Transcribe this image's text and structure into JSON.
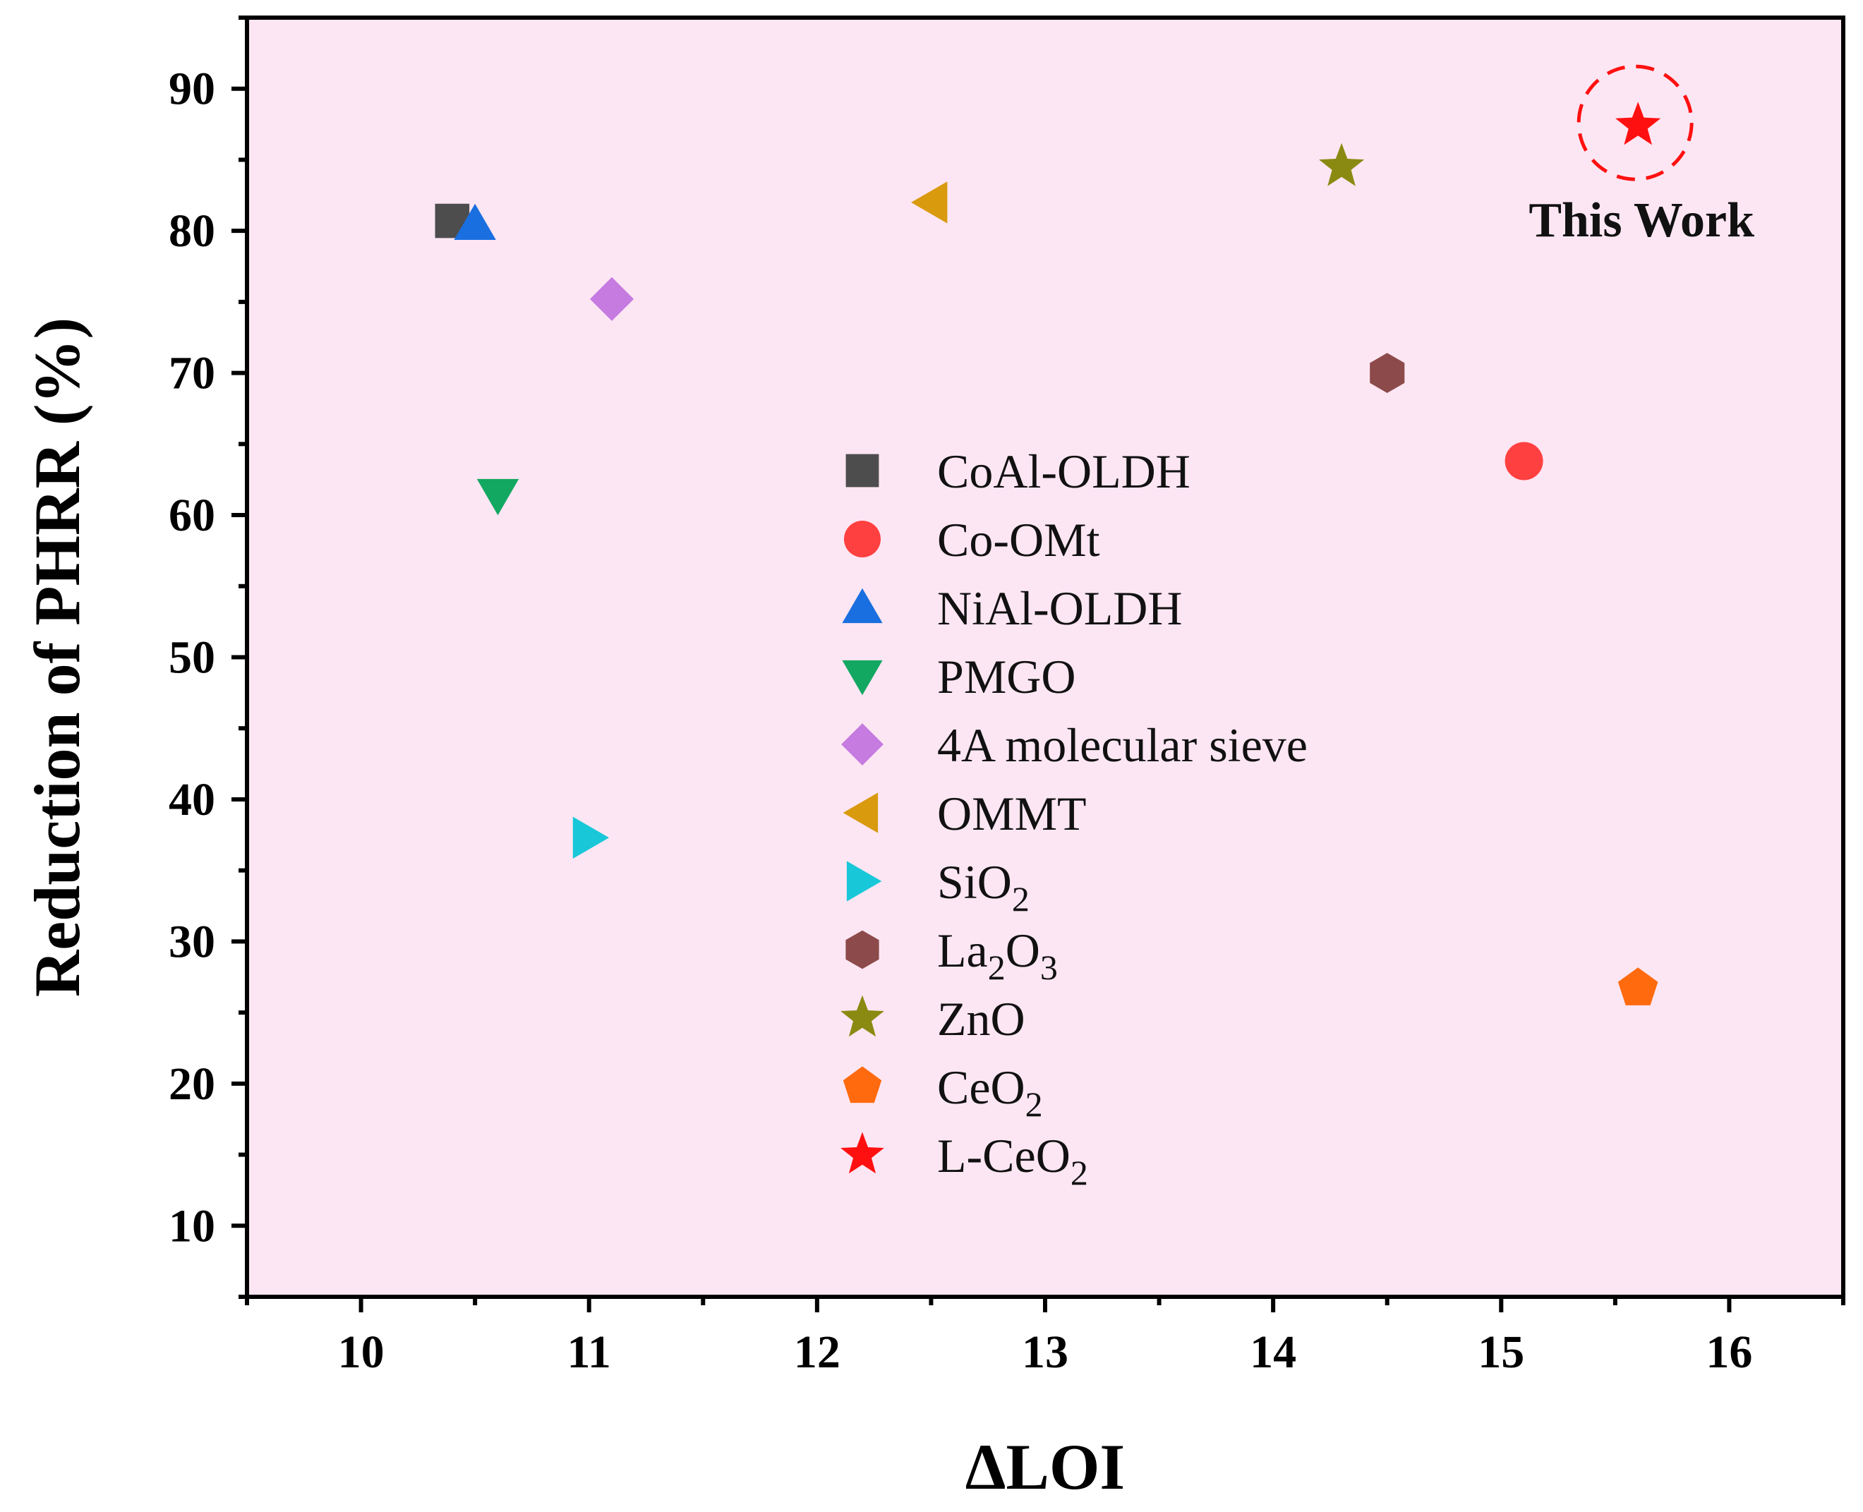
{
  "chart_data": {
    "type": "scatter",
    "title": "",
    "xlabel": "ΔLOI",
    "ylabel": "Reduction of PHRR (%)",
    "xlim": [
      9.5,
      16.5
    ],
    "ylim": [
      5,
      95
    ],
    "xticks": [
      10,
      11,
      12,
      13,
      14,
      15,
      16
    ],
    "yticks": [
      10,
      20,
      30,
      40,
      50,
      60,
      70,
      80,
      90
    ],
    "x_minor_step": 0.5,
    "y_minor_step": 5,
    "background": "#fde6f3",
    "legend_position": "center",
    "series": [
      {
        "name": "CoAl-OLDH",
        "marker": "square",
        "color": "#4d4d4d",
        "x": 10.4,
        "y": 80.7
      },
      {
        "name": "Co-OMt",
        "marker": "circle",
        "color": "#ff4040",
        "x": 15.1,
        "y": 63.8
      },
      {
        "name": "NiAl-OLDH",
        "marker": "triangle-up",
        "color": "#1a6fe0",
        "x": 10.5,
        "y": 80.5
      },
      {
        "name": "PMGO",
        "marker": "triangle-down",
        "color": "#12a862",
        "x": 10.6,
        "y": 61.4
      },
      {
        "name": "4A molecular sieve",
        "marker": "diamond",
        "color": "#c57be0",
        "x": 11.1,
        "y": 75.2
      },
      {
        "name": "OMMT",
        "marker": "triangle-left",
        "color": "#d99a0e",
        "x": 12.5,
        "y": 82.0
      },
      {
        "name": "SiO",
        "subscript": "2",
        "marker": "triangle-right",
        "color": "#18c8d8",
        "x": 11.0,
        "y": 37.3
      },
      {
        "name": "La",
        "subscript": "2",
        "name_tail": "O",
        "subscript_tail": "3",
        "marker": "hexagon",
        "color": "#8c4a4a",
        "x": 14.5,
        "y": 70.0
      },
      {
        "name": "ZnO",
        "marker": "star",
        "color": "#8a8a12",
        "x": 14.3,
        "y": 84.5
      },
      {
        "name": "CeO",
        "subscript": "2",
        "marker": "pentagon",
        "color": "#ff6a0e",
        "x": 15.6,
        "y": 26.7
      },
      {
        "name": "L-CeO",
        "subscript": "2",
        "marker": "star",
        "color": "#ff1010",
        "x": 15.6,
        "y": 87.4
      }
    ],
    "annotations": [
      {
        "text": "This Work",
        "target": "L-CeO2",
        "highlight": "dashed-circle",
        "color": "#ff1010"
      }
    ]
  }
}
